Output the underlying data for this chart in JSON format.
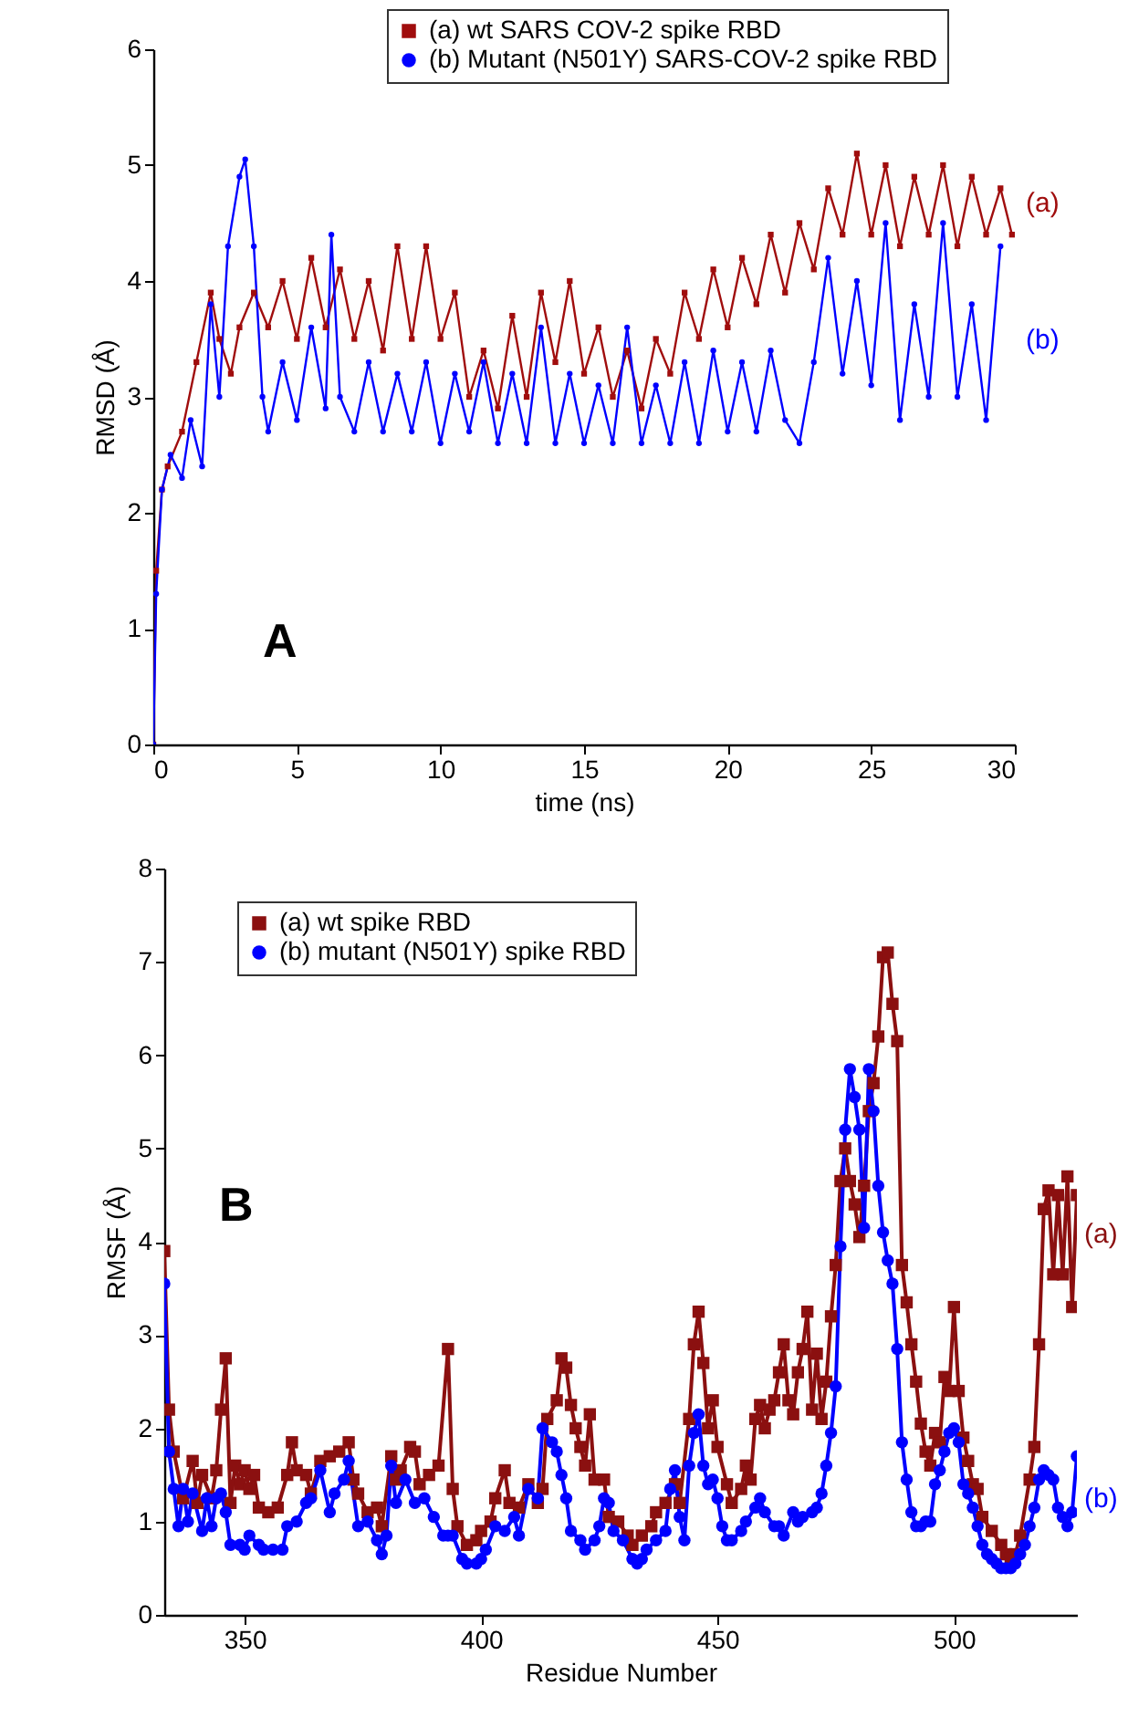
{
  "chart_data": [
    {
      "type": "line",
      "xlabel": "time (ns)",
      "ylabel": "RMSD (Å)",
      "xlim": [
        0,
        30
      ],
      "ylim": [
        0,
        6
      ],
      "xticks": [
        0,
        5,
        10,
        15,
        20,
        25,
        30
      ],
      "yticks": [
        0,
        1,
        2,
        3,
        4,
        5,
        6
      ],
      "legend": "top right",
      "annotations": [
        "A",
        "(a)",
        "(b)"
      ],
      "series": [
        {
          "name": "(a) wt SARS COV-2 spike RBD",
          "color": "#a00d0d",
          "marker": "square",
          "x": [
            0,
            0.1,
            0.3,
            0.5,
            1,
            1.5,
            2,
            2.3,
            2.7,
            3,
            3.5,
            4,
            4.5,
            5,
            5.5,
            6,
            6.5,
            7,
            7.5,
            8,
            8.5,
            9,
            9.5,
            10,
            10.5,
            11,
            11.5,
            12,
            12.5,
            13,
            13.5,
            14,
            14.5,
            15,
            15.5,
            16,
            16.5,
            17,
            17.5,
            18,
            18.5,
            19,
            19.5,
            20,
            20.5,
            21,
            21.5,
            22,
            22.5,
            23,
            23.5,
            24,
            24.5,
            25,
            25.5,
            26,
            26.5,
            27,
            27.5,
            28,
            28.5,
            29,
            29.5,
            29.9
          ],
          "values": [
            0,
            1.5,
            2.2,
            2.4,
            2.7,
            3.3,
            3.9,
            3.5,
            3.2,
            3.6,
            3.9,
            3.6,
            4.0,
            3.5,
            4.2,
            3.6,
            4.1,
            3.5,
            4.0,
            3.4,
            4.3,
            3.5,
            4.3,
            3.5,
            3.9,
            3.0,
            3.4,
            2.9,
            3.7,
            3.0,
            3.9,
            3.3,
            4.0,
            3.2,
            3.6,
            3.0,
            3.4,
            2.9,
            3.5,
            3.2,
            3.9,
            3.5,
            4.1,
            3.6,
            4.2,
            3.8,
            4.4,
            3.9,
            4.5,
            4.1,
            4.8,
            4.4,
            5.1,
            4.4,
            5.0,
            4.3,
            4.9,
            4.4,
            5.0,
            4.3,
            4.9,
            4.4,
            4.8,
            4.4
          ]
        },
        {
          "name": "(b) Mutant (N501Y) SARS-COV-2 spike RBD",
          "color": "#0000ff",
          "marker": "circle",
          "x": [
            0,
            0.1,
            0.3,
            0.6,
            1,
            1.3,
            1.7,
            2,
            2.3,
            2.6,
            3,
            3.2,
            3.5,
            3.8,
            4,
            4.5,
            5,
            5.5,
            6,
            6.2,
            6.5,
            7,
            7.5,
            8,
            8.5,
            9,
            9.5,
            10,
            10.5,
            11,
            11.5,
            12,
            12.5,
            13,
            13.5,
            14,
            14.5,
            15,
            15.5,
            16,
            16.5,
            17,
            17.5,
            18,
            18.5,
            19,
            19.5,
            20,
            20.5,
            21,
            21.5,
            22,
            22.5,
            23,
            23.5,
            24,
            24.5,
            25,
            25.5,
            26,
            26.5,
            27,
            27.5,
            28,
            28.5,
            29,
            29.5
          ],
          "values": [
            0,
            1.3,
            2.2,
            2.5,
            2.3,
            2.8,
            2.4,
            3.8,
            3.0,
            4.3,
            4.9,
            5.05,
            4.3,
            3.0,
            2.7,
            3.3,
            2.8,
            3.6,
            2.9,
            4.4,
            3.0,
            2.7,
            3.3,
            2.7,
            3.2,
            2.7,
            3.3,
            2.6,
            3.2,
            2.7,
            3.3,
            2.6,
            3.2,
            2.6,
            3.6,
            2.6,
            3.2,
            2.6,
            3.1,
            2.6,
            3.6,
            2.6,
            3.1,
            2.6,
            3.3,
            2.6,
            3.4,
            2.7,
            3.3,
            2.7,
            3.4,
            2.8,
            2.6,
            3.3,
            4.2,
            3.2,
            4.0,
            3.1,
            4.5,
            2.8,
            3.8,
            3.0,
            4.5,
            3.0,
            3.8,
            2.8,
            4.3
          ]
        }
      ]
    },
    {
      "type": "line",
      "xlabel": "Residue Number",
      "ylabel": "RMSF (Å)",
      "xlim": [
        333,
        526
      ],
      "ylim": [
        0,
        8
      ],
      "xticks": [
        350,
        400,
        450,
        500
      ],
      "yticks": [
        0,
        1,
        2,
        3,
        4,
        5,
        6,
        7,
        8
      ],
      "legend": "top left",
      "annotations": [
        "B",
        "(a)",
        "(b)"
      ],
      "series": [
        {
          "name": "(a) wt spike RBD",
          "color": "#8b1010",
          "marker": "square",
          "x": [
            333,
            334,
            335,
            337,
            339,
            340,
            341,
            343,
            344,
            345,
            346,
            347,
            348,
            349,
            350,
            351,
            352,
            353,
            355,
            357,
            359,
            360,
            361,
            363,
            364,
            366,
            368,
            370,
            372,
            373,
            374,
            376,
            378,
            379,
            381,
            382,
            383,
            385,
            386,
            387,
            389,
            391,
            393,
            394,
            395,
            397,
            399,
            400,
            402,
            403,
            405,
            406,
            408,
            410,
            412,
            413,
            414,
            416,
            417,
            418,
            419,
            420,
            421,
            422,
            423,
            424,
            426,
            427,
            429,
            431,
            432,
            434,
            436,
            437,
            439,
            441,
            442,
            444,
            445,
            446,
            447,
            448,
            449,
            450,
            452,
            453,
            455,
            456,
            457,
            458,
            459,
            460,
            461,
            462,
            463,
            464,
            465,
            466,
            467,
            468,
            469,
            470,
            471,
            472,
            473,
            474,
            475,
            476,
            477,
            478,
            479,
            480,
            481,
            482,
            483,
            484,
            485,
            486,
            487,
            488,
            489,
            490,
            491,
            492,
            493,
            494,
            495,
            496,
            497,
            498,
            499,
            500,
            501,
            502,
            503,
            504,
            505,
            506,
            508,
            510,
            511,
            512,
            513,
            514,
            516,
            517,
            518,
            519,
            520,
            521,
            522,
            523,
            524,
            525,
            526
          ],
          "values": [
            3.9,
            2.2,
            1.75,
            1.25,
            1.65,
            1.2,
            1.5,
            1.25,
            1.55,
            2.2,
            2.75,
            1.2,
            1.6,
            1.4,
            1.55,
            1.35,
            1.5,
            1.15,
            1.1,
            1.15,
            1.5,
            1.85,
            1.55,
            1.5,
            1.3,
            1.65,
            1.7,
            1.75,
            1.85,
            1.45,
            1.3,
            1.1,
            1.15,
            0.95,
            1.7,
            1.45,
            1.55,
            1.8,
            1.75,
            1.4,
            1.5,
            1.6,
            2.85,
            1.35,
            0.95,
            0.75,
            0.8,
            0.9,
            1.0,
            1.25,
            1.55,
            1.2,
            1.15,
            1.4,
            1.2,
            1.35,
            2.1,
            2.3,
            2.75,
            2.65,
            2.25,
            2.0,
            1.8,
            1.6,
            2.15,
            1.45,
            1.45,
            1.05,
            1.0,
            0.85,
            0.75,
            0.85,
            0.95,
            1.1,
            1.2,
            1.4,
            1.2,
            2.1,
            2.9,
            3.25,
            2.7,
            2.0,
            2.3,
            1.8,
            1.4,
            1.2,
            1.35,
            1.6,
            1.45,
            2.1,
            2.25,
            2.0,
            2.2,
            2.3,
            2.6,
            2.9,
            2.3,
            2.15,
            2.6,
            2.85,
            3.25,
            2.2,
            2.8,
            2.1,
            2.5,
            3.2,
            3.75,
            4.65,
            5.0,
            4.65,
            4.4,
            4.05,
            4.6,
            5.4,
            5.7,
            6.2,
            7.05,
            7.1,
            6.55,
            6.15,
            3.75,
            3.35,
            2.9,
            2.5,
            2.05,
            1.75,
            1.6,
            1.95,
            1.85,
            2.55,
            2.4,
            3.3,
            2.4,
            1.9,
            1.65,
            1.4,
            1.35,
            1.05,
            0.9,
            0.75,
            0.65,
            0.6,
            0.65,
            0.85,
            1.45,
            1.8,
            2.9,
            4.35,
            4.55,
            3.65,
            4.5,
            3.65,
            4.7,
            3.3,
            4.5
          ]
        },
        {
          "name": "(b) mutant (N501Y) spike RBD",
          "color": "#0000ff",
          "marker": "circle",
          "x": [
            333,
            334,
            335,
            336,
            337,
            338,
            339,
            341,
            342,
            343,
            344,
            345,
            346,
            347,
            349,
            350,
            351,
            353,
            354,
            356,
            358,
            359,
            361,
            363,
            364,
            366,
            368,
            369,
            371,
            372,
            374,
            376,
            378,
            379,
            380,
            381,
            382,
            384,
            386,
            388,
            390,
            392,
            393,
            394,
            396,
            397,
            399,
            400,
            401,
            403,
            405,
            407,
            408,
            410,
            412,
            413,
            415,
            416,
            417,
            418,
            419,
            421,
            422,
            424,
            425,
            426,
            427,
            428,
            430,
            432,
            433,
            434,
            435,
            437,
            439,
            440,
            441,
            442,
            443,
            444,
            445,
            446,
            447,
            448,
            449,
            450,
            451,
            452,
            453,
            455,
            456,
            458,
            459,
            460,
            462,
            463,
            464,
            466,
            467,
            468,
            470,
            471,
            472,
            473,
            474,
            475,
            476,
            477,
            478,
            479,
            480,
            481,
            482,
            483,
            484,
            485,
            486,
            487,
            488,
            489,
            490,
            491,
            492,
            493,
            494,
            495,
            496,
            497,
            498,
            499,
            500,
            501,
            502,
            503,
            504,
            505,
            506,
            507,
            508,
            509,
            510,
            511,
            512,
            513,
            514,
            515,
            516,
            517,
            518,
            519,
            520,
            521,
            522,
            523,
            524,
            525,
            526
          ],
          "values": [
            3.55,
            1.75,
            1.35,
            0.95,
            1.35,
            1.0,
            1.3,
            0.9,
            1.25,
            0.95,
            1.25,
            1.3,
            1.1,
            0.75,
            0.75,
            0.7,
            0.85,
            0.75,
            0.7,
            0.7,
            0.7,
            0.95,
            1.0,
            1.2,
            1.25,
            1.55,
            1.1,
            1.3,
            1.45,
            1.65,
            0.95,
            1.0,
            0.8,
            0.65,
            0.85,
            1.6,
            1.2,
            1.45,
            1.2,
            1.25,
            1.05,
            0.85,
            0.85,
            0.85,
            0.6,
            0.55,
            0.55,
            0.6,
            0.7,
            0.95,
            0.9,
            1.05,
            0.85,
            1.35,
            1.25,
            2.0,
            1.85,
            1.75,
            1.5,
            1.25,
            0.9,
            0.8,
            0.7,
            0.8,
            0.95,
            1.25,
            1.2,
            0.9,
            0.8,
            0.6,
            0.55,
            0.6,
            0.7,
            0.8,
            0.9,
            1.35,
            1.55,
            1.05,
            0.8,
            1.6,
            1.95,
            2.15,
            1.6,
            1.4,
            1.45,
            1.25,
            0.95,
            0.8,
            0.8,
            0.9,
            1.0,
            1.15,
            1.25,
            1.1,
            0.95,
            0.95,
            0.85,
            1.1,
            1.0,
            1.05,
            1.1,
            1.15,
            1.3,
            1.6,
            1.95,
            2.45,
            3.95,
            5.2,
            5.85,
            5.55,
            5.2,
            4.15,
            5.85,
            5.4,
            4.6,
            4.1,
            3.8,
            3.55,
            2.85,
            1.85,
            1.45,
            1.1,
            0.95,
            0.95,
            1.0,
            1.0,
            1.4,
            1.55,
            1.75,
            1.95,
            2.0,
            1.85,
            1.4,
            1.3,
            1.15,
            0.95,
            0.75,
            0.65,
            0.6,
            0.55,
            0.5,
            0.5,
            0.5,
            0.55,
            0.65,
            0.75,
            0.95,
            1.15,
            1.45,
            1.55,
            1.5,
            1.45,
            1.15,
            1.05,
            0.95,
            1.1,
            1.7
          ]
        }
      ]
    }
  ]
}
